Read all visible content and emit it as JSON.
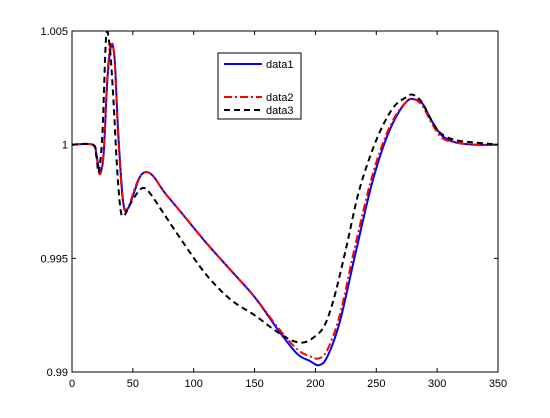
{
  "chart_data": {
    "type": "line",
    "title": "",
    "xlabel": "",
    "ylabel": "",
    "xlim": [
      0,
      350
    ],
    "ylim": [
      0.99,
      1.005
    ],
    "x_ticks": [
      0,
      50,
      100,
      150,
      200,
      250,
      300,
      350
    ],
    "x_tick_labels": [
      "0",
      "50",
      "100",
      "150",
      "200",
      "250",
      "300",
      "350"
    ],
    "y_ticks": [
      0.99,
      0.995,
      1.0,
      1.005
    ],
    "y_tick_labels": [
      "0.99",
      "0.995",
      "1",
      "1.005"
    ],
    "grid": false,
    "legend_position": "top-center",
    "series": [
      {
        "name": "data1",
        "color": "#0000ff",
        "style": "solid",
        "points": [
          [
            0,
            1.0
          ],
          [
            17,
            1.0
          ],
          [
            20,
            0.9996
          ],
          [
            23,
            0.9988
          ],
          [
            26,
            0.9996
          ],
          [
            29,
            1.0028
          ],
          [
            32,
            1.0043
          ],
          [
            35,
            1.0038
          ],
          [
            38,
            1.0005
          ],
          [
            42,
            0.9975
          ],
          [
            46,
            0.9972
          ],
          [
            51,
            0.9979
          ],
          [
            56,
            0.9986
          ],
          [
            61,
            0.9988
          ],
          [
            67,
            0.9986
          ],
          [
            76,
            0.9979
          ],
          [
            90,
            0.997
          ],
          [
            110,
            0.9957
          ],
          [
            130,
            0.9945
          ],
          [
            150,
            0.9933
          ],
          [
            170,
            0.9918
          ],
          [
            185,
            0.9908
          ],
          [
            195,
            0.9905
          ],
          [
            203,
            0.9903
          ],
          [
            210,
            0.9907
          ],
          [
            220,
            0.9922
          ],
          [
            232,
            0.995
          ],
          [
            245,
            0.998
          ],
          [
            255,
            0.9998
          ],
          [
            265,
            1.0011
          ],
          [
            275,
            1.0019
          ],
          [
            281,
            1.002
          ],
          [
            288,
            1.0018
          ],
          [
            296,
            1.001
          ],
          [
            304,
            1.0004
          ],
          [
            315,
            1.0001
          ],
          [
            330,
            1.0
          ],
          [
            350,
            1.0
          ]
        ]
      },
      {
        "name": "data2",
        "color": "#ff0000",
        "style": "dashdot",
        "points": [
          [
            0,
            1.0
          ],
          [
            17,
            1.0
          ],
          [
            20,
            0.9995
          ],
          [
            23,
            0.9987
          ],
          [
            26,
            0.9997
          ],
          [
            29,
            1.003
          ],
          [
            32,
            1.0045
          ],
          [
            35,
            1.0037
          ],
          [
            38,
            1.0003
          ],
          [
            42,
            0.9974
          ],
          [
            46,
            0.9972
          ],
          [
            51,
            0.998
          ],
          [
            56,
            0.9986
          ],
          [
            61,
            0.9988
          ],
          [
            67,
            0.9986
          ],
          [
            76,
            0.9979
          ],
          [
            90,
            0.997
          ],
          [
            110,
            0.9957
          ],
          [
            130,
            0.9945
          ],
          [
            150,
            0.9933
          ],
          [
            170,
            0.9919
          ],
          [
            185,
            0.991
          ],
          [
            195,
            0.9907
          ],
          [
            203,
            0.9906
          ],
          [
            210,
            0.991
          ],
          [
            220,
            0.9925
          ],
          [
            232,
            0.9954
          ],
          [
            245,
            0.9983
          ],
          [
            255,
            1.0
          ],
          [
            265,
            1.0012
          ],
          [
            275,
            1.0019
          ],
          [
            281,
            1.002
          ],
          [
            288,
            1.0017
          ],
          [
            296,
            1.0009
          ],
          [
            304,
            1.0003
          ],
          [
            315,
            1.0001
          ],
          [
            330,
            1.0
          ],
          [
            350,
            1.0
          ]
        ]
      },
      {
        "name": "data3",
        "color": "#000000",
        "style": "dashed",
        "points": [
          [
            0,
            1.0
          ],
          [
            17,
            1.0
          ],
          [
            20,
            0.9995
          ],
          [
            22,
            0.9988
          ],
          [
            25,
            1.0005
          ],
          [
            28,
            1.0047
          ],
          [
            31,
            1.0043
          ],
          [
            34,
            1.002
          ],
          [
            37,
            0.999
          ],
          [
            40,
            0.9971
          ],
          [
            43,
            0.9969
          ],
          [
            48,
            0.9974
          ],
          [
            54,
            0.9979
          ],
          [
            59,
            0.9981
          ],
          [
            65,
            0.9978
          ],
          [
            75,
            0.997
          ],
          [
            90,
            0.9958
          ],
          [
            110,
            0.9943
          ],
          [
            130,
            0.9932
          ],
          [
            150,
            0.9925
          ],
          [
            165,
            0.9919
          ],
          [
            180,
            0.9914
          ],
          [
            190,
            0.9913
          ],
          [
            198,
            0.9915
          ],
          [
            207,
            0.992
          ],
          [
            215,
            0.9932
          ],
          [
            225,
            0.9954
          ],
          [
            235,
            0.9978
          ],
          [
            245,
            0.9995
          ],
          [
            255,
            1.0008
          ],
          [
            265,
            1.0017
          ],
          [
            275,
            1.0021
          ],
          [
            280,
            1.0022
          ],
          [
            287,
            1.0019
          ],
          [
            295,
            1.0011
          ],
          [
            303,
            1.0005
          ],
          [
            315,
            1.0002
          ],
          [
            330,
            1.0001
          ],
          [
            350,
            1.0
          ]
        ]
      }
    ]
  }
}
